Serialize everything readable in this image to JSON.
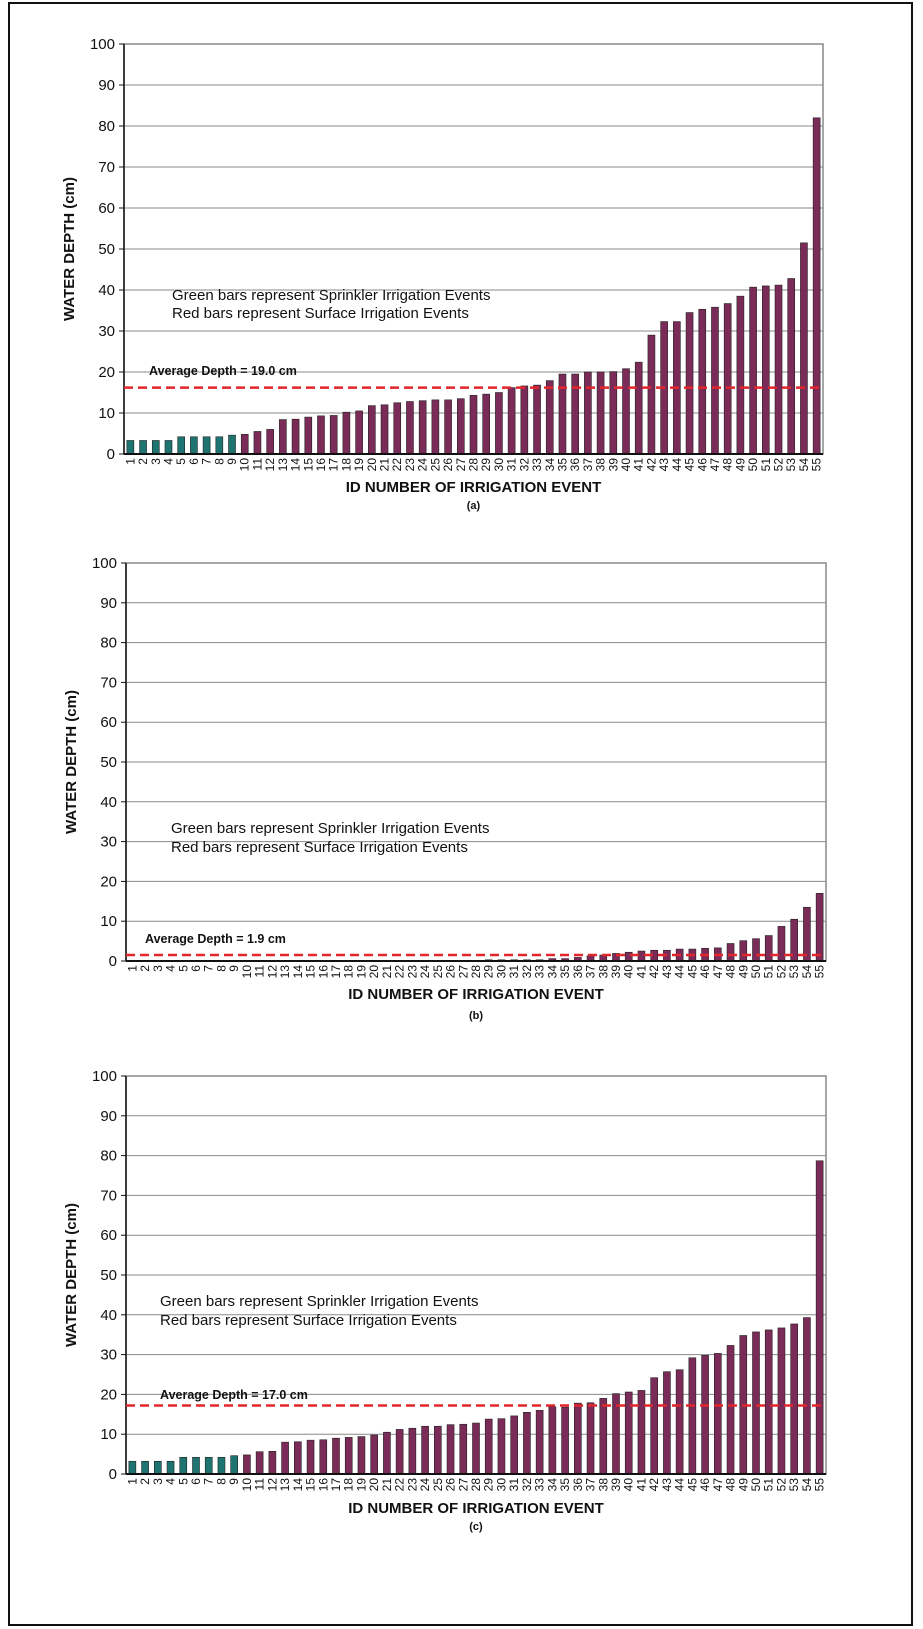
{
  "chart_data": [
    {
      "type": "bar",
      "caption": "(a)",
      "x_label": "ID NUMBER OF IRRIGATION EVENT",
      "y_label": "WATER DEPTH (cm)",
      "annotations": [
        "Green bars represent Sprinkler Irrigation Events",
        "Red bars represent Surface Irrigation Events"
      ],
      "average_text": "Average Depth = 19.0 cm",
      "reference_line": 16.2,
      "reference_color": "#e3262b",
      "categories": [
        "1",
        "2",
        "3",
        "4",
        "5",
        "6",
        "7",
        "8",
        "9",
        "10",
        "11",
        "12",
        "13",
        "14",
        "15",
        "16",
        "17",
        "18",
        "19",
        "20",
        "21",
        "22",
        "23",
        "24",
        "25",
        "26",
        "27",
        "28",
        "29",
        "30",
        "31",
        "32",
        "33",
        "34",
        "35",
        "36",
        "37",
        "38",
        "39",
        "40",
        "41",
        "42",
        "43",
        "44",
        "45",
        "46",
        "47",
        "48",
        "49",
        "50",
        "51",
        "52",
        "53",
        "54",
        "55"
      ],
      "values": [
        3.3,
        3.3,
        3.3,
        3.3,
        4.2,
        4.2,
        4.2,
        4.2,
        4.6,
        4.8,
        5.5,
        6,
        8.4,
        8.5,
        9,
        9.3,
        9.4,
        10.2,
        10.5,
        11.8,
        12,
        12.5,
        12.8,
        13,
        13.2,
        13.2,
        13.5,
        14.3,
        14.6,
        15,
        16.2,
        16.6,
        16.8,
        17.9,
        19.5,
        19.5,
        20,
        20,
        20.1,
        20.8,
        22.4,
        29,
        32.3,
        32.3,
        34.5,
        35.3,
        35.8,
        36.7,
        38.5,
        40.7,
        41,
        41.2,
        42.8,
        51.5,
        82
      ],
      "colors": [
        "#1e7470",
        "#1e7470",
        "#1e7470",
        "#1e7470",
        "#1e7470",
        "#1e7470",
        "#1e7470",
        "#1e7470",
        "#1e7470",
        "#7a2b57",
        "#7a2b57",
        "#7a2b57",
        "#7a2b57",
        "#7a2b57",
        "#7a2b57",
        "#7a2b57",
        "#7a2b57",
        "#7a2b57",
        "#7a2b57",
        "#7a2b57",
        "#7a2b57",
        "#7a2b57",
        "#7a2b57",
        "#7a2b57",
        "#7a2b57",
        "#7a2b57",
        "#7a2b57",
        "#7a2b57",
        "#7a2b57",
        "#7a2b57",
        "#7a2b57",
        "#7a2b57",
        "#7a2b57",
        "#7a2b57",
        "#7a2b57",
        "#7a2b57",
        "#7a2b57",
        "#7a2b57",
        "#7a2b57",
        "#7a2b57",
        "#7a2b57",
        "#7a2b57",
        "#7a2b57",
        "#7a2b57",
        "#7a2b57",
        "#7a2b57",
        "#7a2b57",
        "#7a2b57",
        "#7a2b57",
        "#7a2b57",
        "#7a2b57",
        "#7a2b57",
        "#7a2b57",
        "#7a2b57",
        "#7a2b57"
      ],
      "ylim": [
        0,
        100
      ],
      "yticks": [
        0,
        10,
        20,
        30,
        40,
        50,
        60,
        70,
        80,
        90,
        100
      ],
      "grid": true
    },
    {
      "type": "bar",
      "caption": "(b)",
      "x_label": "ID NUMBER OF IRRIGATION EVENT",
      "y_label": "WATER DEPTH (cm)",
      "annotations": [
        "Green bars represent Sprinkler Irrigation Events",
        "Red bars represent Surface Irrigation Events"
      ],
      "average_text": "Average Depth = 1.9 cm",
      "reference_line": 1.5,
      "reference_color": "#e3262b",
      "categories": [
        "1",
        "2",
        "3",
        "4",
        "5",
        "6",
        "7",
        "8",
        "9",
        "10",
        "11",
        "12",
        "13",
        "14",
        "15",
        "16",
        "17",
        "18",
        "19",
        "20",
        "21",
        "22",
        "23",
        "24",
        "25",
        "26",
        "27",
        "28",
        "29",
        "30",
        "31",
        "32",
        "33",
        "34",
        "35",
        "36",
        "37",
        "38",
        "39",
        "40",
        "41",
        "42",
        "43",
        "44",
        "45",
        "46",
        "47",
        "48",
        "49",
        "50",
        "51",
        "52",
        "53",
        "54",
        "55"
      ],
      "values": [
        0,
        0,
        0,
        0,
        0,
        0,
        0,
        0,
        0,
        0,
        0,
        0,
        0,
        0,
        0,
        0,
        0,
        0,
        0,
        0,
        0.1,
        0.1,
        0.1,
        0.1,
        0.1,
        0.1,
        0.1,
        0.1,
        0.3,
        0.3,
        0.3,
        0.3,
        0.3,
        0.6,
        0.6,
        0.9,
        1.3,
        1.5,
        1.9,
        2.2,
        2.5,
        2.7,
        2.7,
        3,
        3,
        3.2,
        3.3,
        4.4,
        5.1,
        5.6,
        6.4,
        8.7,
        10.5,
        13.5,
        17
      ],
      "colors": [
        "#1e7470",
        "#1e7470",
        "#1e7470",
        "#1e7470",
        "#1e7470",
        "#1e7470",
        "#1e7470",
        "#1e7470",
        "#1e7470",
        "#7a2b57",
        "#7a2b57",
        "#7a2b57",
        "#7a2b57",
        "#7a2b57",
        "#7a2b57",
        "#7a2b57",
        "#7a2b57",
        "#7a2b57",
        "#7a2b57",
        "#7a2b57",
        "#7a2b57",
        "#7a2b57",
        "#7a2b57",
        "#7a2b57",
        "#7a2b57",
        "#7a2b57",
        "#7a2b57",
        "#7a2b57",
        "#7a2b57",
        "#7a2b57",
        "#7a2b57",
        "#7a2b57",
        "#7a2b57",
        "#7a2b57",
        "#7a2b57",
        "#7a2b57",
        "#7a2b57",
        "#7a2b57",
        "#7a2b57",
        "#7a2b57",
        "#7a2b57",
        "#7a2b57",
        "#7a2b57",
        "#7a2b57",
        "#7a2b57",
        "#7a2b57",
        "#7a2b57",
        "#7a2b57",
        "#7a2b57",
        "#7a2b57",
        "#7a2b57",
        "#7a2b57",
        "#7a2b57",
        "#7a2b57",
        "#7a2b57"
      ],
      "ylim": [
        0,
        100
      ],
      "yticks": [
        0,
        10,
        20,
        30,
        40,
        50,
        60,
        70,
        80,
        90,
        100
      ],
      "grid": true
    },
    {
      "type": "bar",
      "caption": "(c)",
      "x_label": "ID NUMBER OF IRRIGATION EVENT",
      "y_label": "WATER DEPTH (cm)",
      "annotations": [
        "Green bars represent Sprinkler Irrigation Events",
        "Red bars represent Surface Irrigation Events"
      ],
      "average_text": "Average Depth = 17.0 cm",
      "reference_line": 17.2,
      "reference_color": "#e3262b",
      "categories": [
        "1",
        "2",
        "3",
        "4",
        "5",
        "6",
        "7",
        "8",
        "9",
        "10",
        "11",
        "12",
        "13",
        "14",
        "15",
        "16",
        "17",
        "18",
        "19",
        "20",
        "21",
        "22",
        "23",
        "24",
        "25",
        "26",
        "27",
        "28",
        "29",
        "30",
        "31",
        "32",
        "33",
        "34",
        "35",
        "36",
        "37",
        "38",
        "39",
        "40",
        "41",
        "42",
        "43",
        "44",
        "45",
        "46",
        "47",
        "48",
        "49",
        "50",
        "51",
        "52",
        "53",
        "54",
        "55"
      ],
      "values": [
        3.2,
        3.2,
        3.2,
        3.2,
        4.2,
        4.2,
        4.2,
        4.2,
        4.6,
        4.8,
        5.6,
        5.7,
        8,
        8.1,
        8.5,
        8.6,
        9,
        9.2,
        9.4,
        9.8,
        10.5,
        11.2,
        11.5,
        12,
        12,
        12.4,
        12.5,
        12.8,
        13.8,
        13.9,
        14.6,
        15.5,
        16,
        16.9,
        16.8,
        17.8,
        17.9,
        19,
        20.2,
        20.6,
        21,
        24.2,
        25.7,
        26.2,
        29.2,
        29.8,
        30.3,
        32.3,
        34.8,
        35.7,
        36.2,
        36.7,
        37.7,
        39.3,
        78.7
      ],
      "colors": [
        "#1e7470",
        "#1e7470",
        "#1e7470",
        "#1e7470",
        "#1e7470",
        "#1e7470",
        "#1e7470",
        "#1e7470",
        "#1e7470",
        "#7a2b57",
        "#7a2b57",
        "#7a2b57",
        "#7a2b57",
        "#7a2b57",
        "#7a2b57",
        "#7a2b57",
        "#7a2b57",
        "#7a2b57",
        "#7a2b57",
        "#7a2b57",
        "#7a2b57",
        "#7a2b57",
        "#7a2b57",
        "#7a2b57",
        "#7a2b57",
        "#7a2b57",
        "#7a2b57",
        "#7a2b57",
        "#7a2b57",
        "#7a2b57",
        "#7a2b57",
        "#7a2b57",
        "#7a2b57",
        "#7a2b57",
        "#7a2b57",
        "#7a2b57",
        "#7a2b57",
        "#7a2b57",
        "#7a2b57",
        "#7a2b57",
        "#7a2b57",
        "#7a2b57",
        "#7a2b57",
        "#7a2b57",
        "#7a2b57",
        "#7a2b57",
        "#7a2b57",
        "#7a2b57",
        "#7a2b57",
        "#7a2b57",
        "#7a2b57",
        "#7a2b57",
        "#7a2b57",
        "#7a2b57",
        "#7a2b57"
      ],
      "ylim": [
        0,
        100
      ],
      "yticks": [
        0,
        10,
        20,
        30,
        40,
        50,
        60,
        70,
        80,
        90,
        100
      ],
      "grid": true
    }
  ]
}
